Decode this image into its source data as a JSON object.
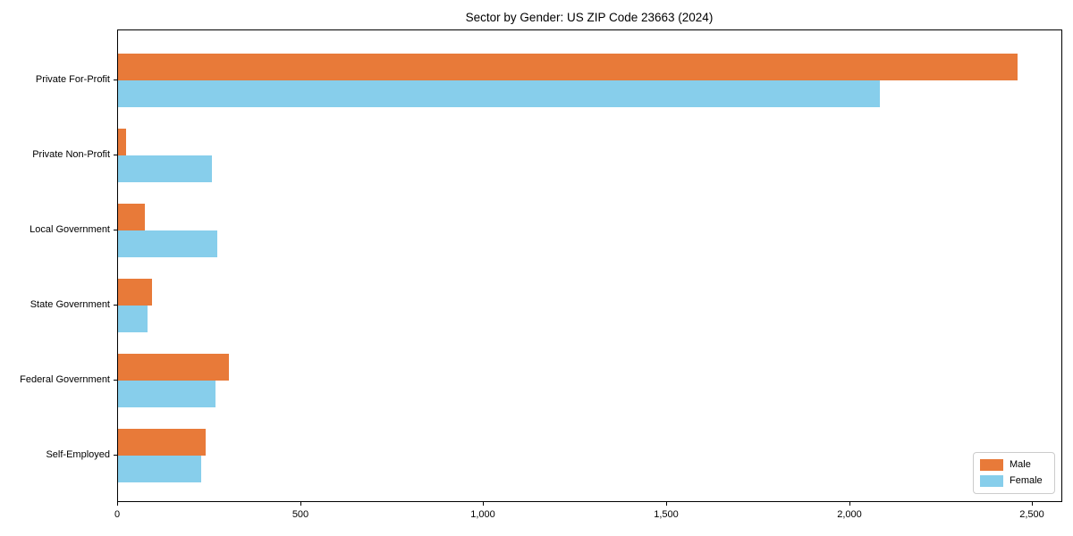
{
  "title": "Sector by Gender: US ZIP Code 23663 (2024)",
  "colors": {
    "male": "#e87a39",
    "female": "#87ceeb",
    "axis": "#000000",
    "legend_border": "#cccccc",
    "background": "#ffffff"
  },
  "chart_data": {
    "type": "bar",
    "orientation": "horizontal",
    "title": "Sector by Gender: US ZIP Code 23663 (2024)",
    "categories": [
      "Private For-Profit",
      "Private Non-Profit",
      "Local Government",
      "State Government",
      "Federal Government",
      "Self-Employed"
    ],
    "series": [
      {
        "name": "Male",
        "color": "#e87a39",
        "values": [
          2457,
          21,
          73,
          92,
          303,
          240
        ]
      },
      {
        "name": "Female",
        "color": "#87ceeb",
        "values": [
          2081,
          257,
          272,
          81,
          266,
          226
        ]
      }
    ],
    "xlabel": "",
    "ylabel": "",
    "xlim": [
      0,
      2582
    ],
    "xticks": [
      0,
      500,
      1000,
      1500,
      2000,
      2500
    ],
    "xtick_labels": [
      "0",
      "500",
      "1,000",
      "1,500",
      "2,000",
      "2,500"
    ],
    "grid": false,
    "legend_position": "lower right"
  }
}
